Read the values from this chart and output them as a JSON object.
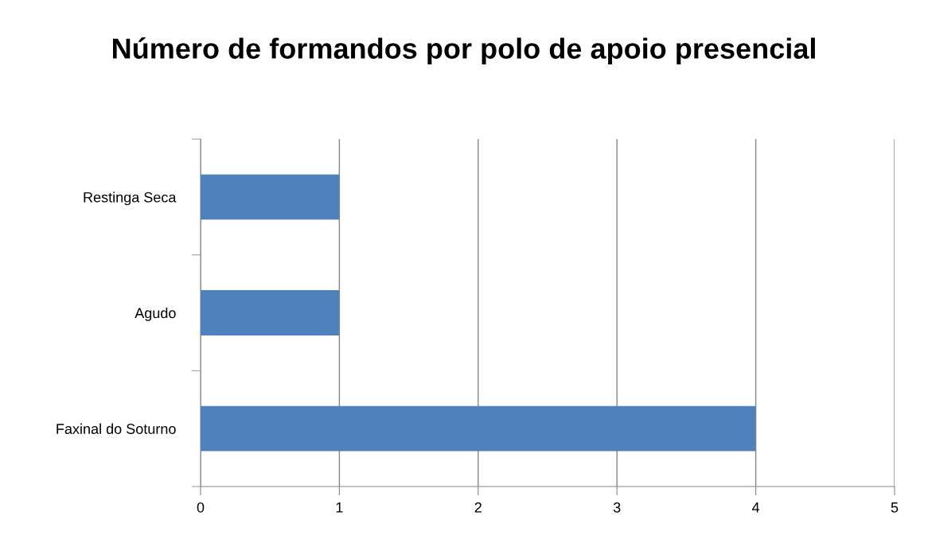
{
  "chart_data": {
    "type": "bar",
    "orientation": "horizontal",
    "title": "Número de formandos por polo de apoio presencial",
    "categories": [
      "Restinga Seca",
      "Agudo",
      "Faxinal do Soturno"
    ],
    "values": [
      1,
      1,
      4
    ],
    "color": "#4f81bd",
    "xlim": [
      0,
      5
    ],
    "xticks": [
      0,
      1,
      2,
      3,
      4,
      5
    ],
    "grid": "x",
    "legend": false
  }
}
